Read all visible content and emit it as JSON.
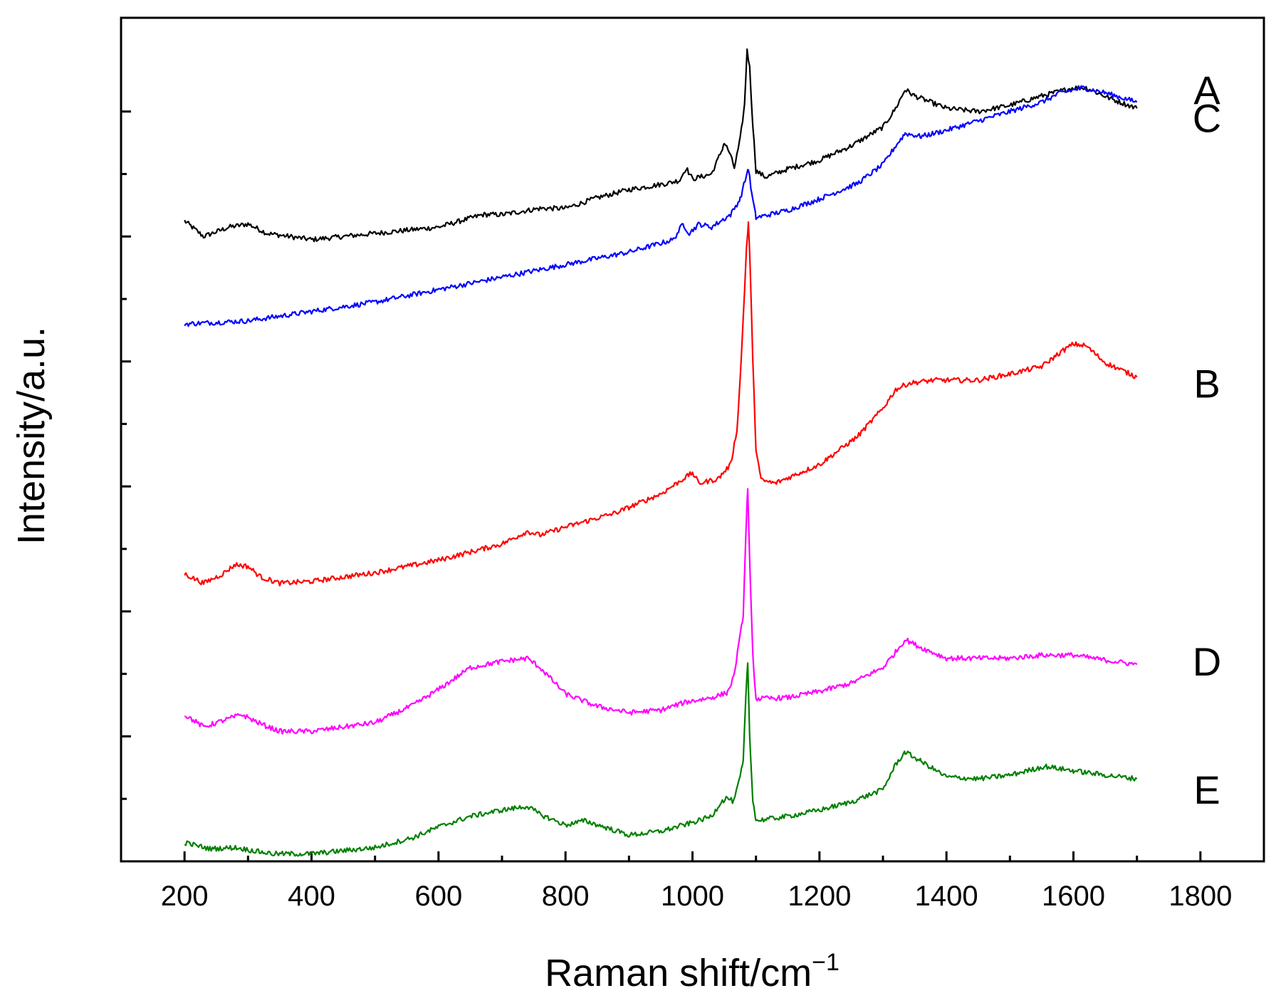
{
  "chart_data": {
    "type": "line",
    "title": "",
    "xlabel": "Raman shift/cm",
    "xlabel_superscript": "−1",
    "ylabel": "Intensity/a.u.",
    "xlim": [
      100,
      1900
    ],
    "ylim": [
      0,
      13.5
    ],
    "x_ticks": [
      200,
      400,
      600,
      800,
      1000,
      1200,
      1400,
      1600,
      1800
    ],
    "x_tick_labels": [
      "200",
      "400",
      "600",
      "800",
      "1000",
      "1200",
      "1400",
      "1600",
      "1800"
    ],
    "y_major_ticks": [
      0,
      2,
      4,
      6,
      8,
      10,
      12
    ],
    "y_minor_ticks": [
      1,
      3,
      5,
      7,
      9,
      11
    ],
    "grid": false,
    "legend": "inline labels at right end of each curve",
    "series": [
      {
        "name": "A",
        "label": "A",
        "color": "#000000",
        "points": [
          [
            200,
            10.25
          ],
          [
            230,
            10.0
          ],
          [
            270,
            10.15
          ],
          [
            300,
            10.2
          ],
          [
            330,
            10.05
          ],
          [
            400,
            9.95
          ],
          [
            500,
            10.05
          ],
          [
            600,
            10.15
          ],
          [
            670,
            10.35
          ],
          [
            700,
            10.35
          ],
          [
            760,
            10.45
          ],
          [
            800,
            10.45
          ],
          [
            850,
            10.62
          ],
          [
            900,
            10.75
          ],
          [
            960,
            10.85
          ],
          [
            980,
            10.9
          ],
          [
            990,
            11.1
          ],
          [
            1000,
            10.92
          ],
          [
            1030,
            11.0
          ],
          [
            1045,
            11.35
          ],
          [
            1050,
            11.5
          ],
          [
            1058,
            11.35
          ],
          [
            1066,
            11.1
          ],
          [
            1075,
            11.55
          ],
          [
            1082,
            12.1
          ],
          [
            1086,
            13.0
          ],
          [
            1090,
            12.7
          ],
          [
            1095,
            11.8
          ],
          [
            1100,
            11.05
          ],
          [
            1115,
            10.95
          ],
          [
            1150,
            11.08
          ],
          [
            1200,
            11.22
          ],
          [
            1250,
            11.45
          ],
          [
            1300,
            11.75
          ],
          [
            1320,
            12.05
          ],
          [
            1335,
            12.35
          ],
          [
            1350,
            12.25
          ],
          [
            1400,
            12.05
          ],
          [
            1450,
            12.0
          ],
          [
            1500,
            12.1
          ],
          [
            1550,
            12.25
          ],
          [
            1600,
            12.38
          ],
          [
            1620,
            12.38
          ],
          [
            1660,
            12.2
          ],
          [
            1700,
            12.05
          ]
        ]
      },
      {
        "name": "C",
        "label": "C",
        "color": "#0000ff",
        "points": [
          [
            200,
            8.6
          ],
          [
            300,
            8.65
          ],
          [
            400,
            8.8
          ],
          [
            500,
            8.95
          ],
          [
            600,
            9.15
          ],
          [
            700,
            9.35
          ],
          [
            800,
            9.55
          ],
          [
            900,
            9.75
          ],
          [
            970,
            9.95
          ],
          [
            985,
            10.2
          ],
          [
            995,
            10.05
          ],
          [
            1010,
            10.2
          ],
          [
            1030,
            10.15
          ],
          [
            1060,
            10.35
          ],
          [
            1075,
            10.6
          ],
          [
            1083,
            10.9
          ],
          [
            1088,
            11.1
          ],
          [
            1093,
            10.7
          ],
          [
            1100,
            10.3
          ],
          [
            1150,
            10.42
          ],
          [
            1200,
            10.6
          ],
          [
            1260,
            10.85
          ],
          [
            1300,
            11.15
          ],
          [
            1320,
            11.45
          ],
          [
            1335,
            11.65
          ],
          [
            1360,
            11.6
          ],
          [
            1400,
            11.7
          ],
          [
            1450,
            11.85
          ],
          [
            1500,
            12.0
          ],
          [
            1550,
            12.15
          ],
          [
            1580,
            12.3
          ],
          [
            1615,
            12.38
          ],
          [
            1650,
            12.3
          ],
          [
            1700,
            12.15
          ]
        ]
      },
      {
        "name": "B",
        "label": "B",
        "color": "#ff0000",
        "points": [
          [
            200,
            4.6
          ],
          [
            230,
            4.45
          ],
          [
            260,
            4.6
          ],
          [
            280,
            4.75
          ],
          [
            300,
            4.72
          ],
          [
            320,
            4.55
          ],
          [
            350,
            4.45
          ],
          [
            400,
            4.48
          ],
          [
            500,
            4.62
          ],
          [
            600,
            4.82
          ],
          [
            700,
            5.08
          ],
          [
            740,
            5.28
          ],
          [
            760,
            5.22
          ],
          [
            800,
            5.35
          ],
          [
            880,
            5.58
          ],
          [
            950,
            5.88
          ],
          [
            1000,
            6.22
          ],
          [
            1010,
            6.05
          ],
          [
            1040,
            6.12
          ],
          [
            1060,
            6.35
          ],
          [
            1070,
            6.9
          ],
          [
            1075,
            7.7
          ],
          [
            1080,
            8.7
          ],
          [
            1085,
            9.8
          ],
          [
            1088,
            10.2
          ],
          [
            1091,
            9.5
          ],
          [
            1095,
            8.0
          ],
          [
            1100,
            6.6
          ],
          [
            1108,
            6.1
          ],
          [
            1130,
            6.05
          ],
          [
            1200,
            6.35
          ],
          [
            1260,
            6.8
          ],
          [
            1300,
            7.25
          ],
          [
            1320,
            7.55
          ],
          [
            1340,
            7.65
          ],
          [
            1380,
            7.7
          ],
          [
            1450,
            7.7
          ],
          [
            1500,
            7.8
          ],
          [
            1550,
            7.92
          ],
          [
            1580,
            8.15
          ],
          [
            1600,
            8.28
          ],
          [
            1620,
            8.25
          ],
          [
            1650,
            7.98
          ],
          [
            1700,
            7.75
          ]
        ]
      },
      {
        "name": "D",
        "label": "D",
        "color": "#ff00ff",
        "points": [
          [
            200,
            2.35
          ],
          [
            230,
            2.15
          ],
          [
            260,
            2.25
          ],
          [
            290,
            2.35
          ],
          [
            320,
            2.2
          ],
          [
            350,
            2.08
          ],
          [
            400,
            2.08
          ],
          [
            500,
            2.22
          ],
          [
            560,
            2.5
          ],
          [
            600,
            2.75
          ],
          [
            650,
            3.1
          ],
          [
            700,
            3.2
          ],
          [
            740,
            3.25
          ],
          [
            760,
            3.1
          ],
          [
            800,
            2.68
          ],
          [
            850,
            2.48
          ],
          [
            900,
            2.38
          ],
          [
            950,
            2.42
          ],
          [
            990,
            2.55
          ],
          [
            1030,
            2.62
          ],
          [
            1055,
            2.7
          ],
          [
            1065,
            2.95
          ],
          [
            1075,
            3.6
          ],
          [
            1080,
            3.95
          ],
          [
            1084,
            5.2
          ],
          [
            1087,
            6.0
          ],
          [
            1090,
            4.8
          ],
          [
            1095,
            3.3
          ],
          [
            1100,
            2.6
          ],
          [
            1150,
            2.62
          ],
          [
            1200,
            2.72
          ],
          [
            1250,
            2.85
          ],
          [
            1300,
            3.1
          ],
          [
            1320,
            3.35
          ],
          [
            1335,
            3.55
          ],
          [
            1360,
            3.42
          ],
          [
            1400,
            3.25
          ],
          [
            1500,
            3.25
          ],
          [
            1550,
            3.3
          ],
          [
            1600,
            3.3
          ],
          [
            1650,
            3.22
          ],
          [
            1700,
            3.15
          ]
        ]
      },
      {
        "name": "E",
        "label": "E",
        "color": "#008000",
        "points": [
          [
            200,
            0.3
          ],
          [
            240,
            0.2
          ],
          [
            280,
            0.22
          ],
          [
            320,
            0.15
          ],
          [
            340,
            0.12
          ],
          [
            400,
            0.12
          ],
          [
            500,
            0.22
          ],
          [
            560,
            0.38
          ],
          [
            600,
            0.55
          ],
          [
            650,
            0.72
          ],
          [
            700,
            0.82
          ],
          [
            740,
            0.88
          ],
          [
            760,
            0.75
          ],
          [
            800,
            0.58
          ],
          [
            830,
            0.65
          ],
          [
            870,
            0.52
          ],
          [
            900,
            0.42
          ],
          [
            950,
            0.48
          ],
          [
            1000,
            0.62
          ],
          [
            1030,
            0.72
          ],
          [
            1045,
            0.95
          ],
          [
            1055,
            1.02
          ],
          [
            1065,
            0.95
          ],
          [
            1075,
            1.35
          ],
          [
            1080,
            1.6
          ],
          [
            1084,
            2.6
          ],
          [
            1087,
            3.2
          ],
          [
            1090,
            2.0
          ],
          [
            1095,
            1.0
          ],
          [
            1100,
            0.65
          ],
          [
            1150,
            0.72
          ],
          [
            1200,
            0.82
          ],
          [
            1250,
            0.95
          ],
          [
            1300,
            1.15
          ],
          [
            1320,
            1.55
          ],
          [
            1335,
            1.75
          ],
          [
            1360,
            1.6
          ],
          [
            1400,
            1.35
          ],
          [
            1450,
            1.32
          ],
          [
            1500,
            1.38
          ],
          [
            1555,
            1.52
          ],
          [
            1600,
            1.45
          ],
          [
            1650,
            1.38
          ],
          [
            1700,
            1.32
          ]
        ]
      }
    ]
  }
}
